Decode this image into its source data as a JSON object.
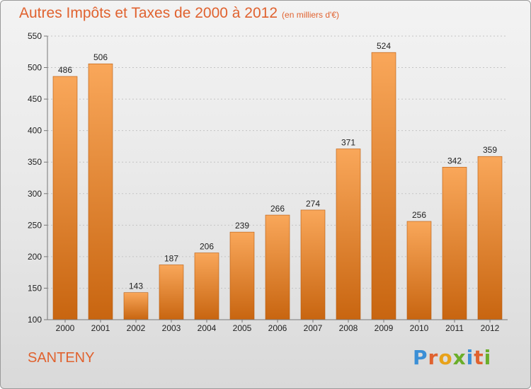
{
  "title": "Autres Impôts et Taxes de 2000 à 2012",
  "unit": "(en milliers d'€)",
  "commune": "SANTENY",
  "logo": {
    "text": "Proxiti",
    "letters": [
      {
        "ch": "P",
        "color": "#3b8fd6"
      },
      {
        "ch": "r",
        "color": "#e0622f"
      },
      {
        "ch": "o",
        "color": "#e8a21a"
      },
      {
        "ch": "x",
        "color": "#6aae2a"
      },
      {
        "ch": "i",
        "color": "#3b8fd6"
      },
      {
        "ch": "t",
        "color": "#e0622f"
      },
      {
        "ch": "i",
        "color": "#6aae2a"
      }
    ]
  },
  "chart_data": {
    "type": "bar",
    "title": "Autres Impôts et Taxes de 2000 à 2012",
    "subtitle": "(en milliers d'€)",
    "categories": [
      "2000",
      "2001",
      "2002",
      "2003",
      "2004",
      "2005",
      "2006",
      "2007",
      "2008",
      "2009",
      "2010",
      "2011",
      "2012"
    ],
    "values": [
      486,
      506,
      143,
      187,
      206,
      239,
      266,
      274,
      371,
      524,
      256,
      342,
      359
    ],
    "ylim": [
      100,
      550
    ],
    "yticks": [
      100,
      150,
      200,
      250,
      300,
      350,
      400,
      450,
      500,
      550
    ],
    "grid": true,
    "bar_color": "#f08a2c",
    "bar_color_dark": "#c86510"
  }
}
